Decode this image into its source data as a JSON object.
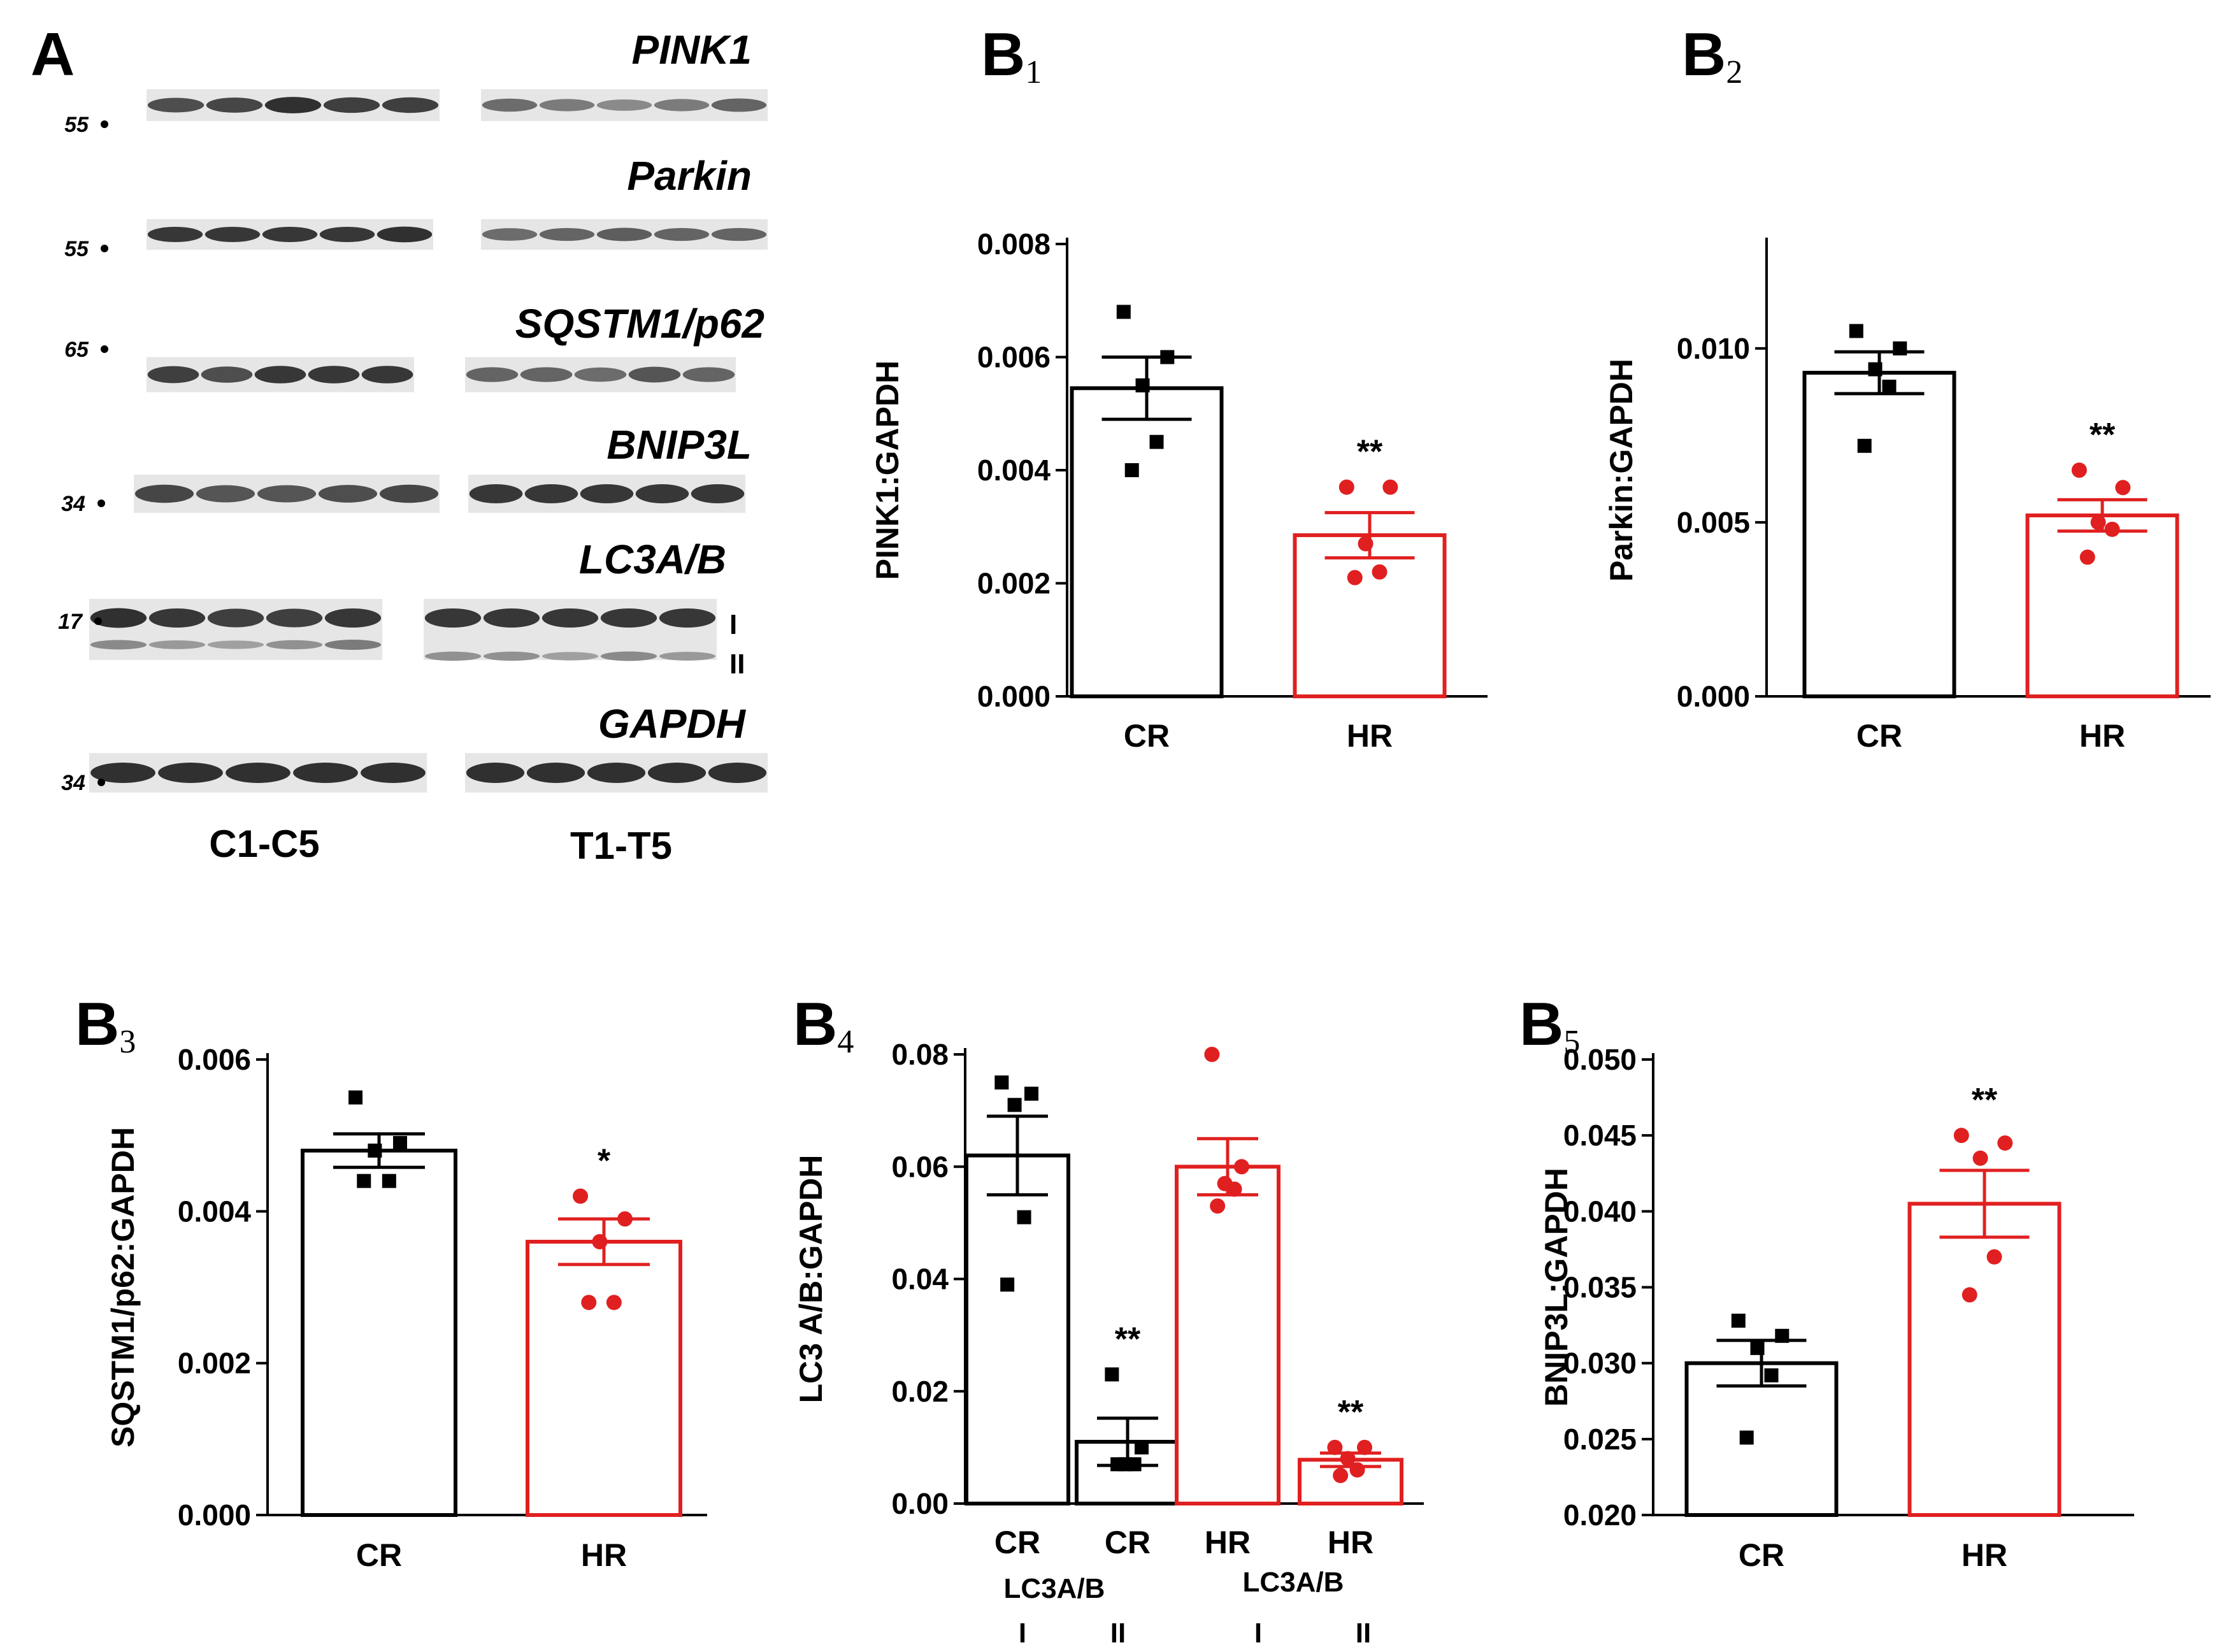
{
  "colors": {
    "control": "#000000",
    "treated": "#e02020",
    "blot_band": "#1a1a1a",
    "blot_bg": "#e6e6e6"
  },
  "blots": {
    "panel_label": "A",
    "group_labels": [
      "C1-C5",
      "T1-T5"
    ],
    "rows": [
      {
        "protein": "PINK1",
        "marker": "55",
        "left_intensity": [
          0.75,
          0.8,
          0.95,
          0.85,
          0.85
        ],
        "right_intensity": [
          0.55,
          0.45,
          0.35,
          0.45,
          0.6
        ]
      },
      {
        "protein": "Parkin",
        "marker": "55",
        "left_intensity": [
          0.9,
          0.9,
          0.9,
          0.9,
          0.95
        ],
        "right_intensity": [
          0.55,
          0.6,
          0.65,
          0.6,
          0.6
        ]
      },
      {
        "protein": "SQSTM1/p62",
        "marker": "65",
        "left_intensity": [
          0.85,
          0.75,
          0.9,
          0.9,
          0.9
        ],
        "right_intensity": [
          0.6,
          0.6,
          0.55,
          0.7,
          0.6
        ]
      },
      {
        "protein": "BNIP3L",
        "marker": "34",
        "left_intensity": [
          0.8,
          0.7,
          0.7,
          0.75,
          0.8
        ],
        "right_intensity": [
          0.9,
          0.9,
          0.9,
          0.9,
          0.9
        ]
      },
      {
        "protein": "LC3A/B",
        "marker": "17",
        "left_intensity": [
          0.95,
          0.9,
          0.85,
          0.85,
          0.9
        ],
        "right_intensity": [
          0.9,
          0.9,
          0.9,
          0.9,
          0.9
        ],
        "band_labels": [
          "I",
          "II"
        ],
        "lower_left_intensity": [
          0.35,
          0.25,
          0.2,
          0.3,
          0.45
        ],
        "lower_right_intensity": [
          0.3,
          0.3,
          0.2,
          0.35,
          0.25
        ]
      },
      {
        "protein": "GAPDH",
        "marker": "34",
        "left_intensity": [
          0.95,
          0.95,
          0.95,
          0.95,
          0.95
        ],
        "right_intensity": [
          0.95,
          0.95,
          0.95,
          0.95,
          0.95
        ]
      }
    ]
  },
  "chart_data": [
    {
      "id": "B1",
      "type": "bar",
      "panel_label": "B",
      "panel_sub": "1",
      "title": "",
      "xlabel": "",
      "ylabel": "PINK1:GAPDH",
      "categories": [
        "CR",
        "HR"
      ],
      "ylim": [
        0,
        0.008
      ],
      "yticks": [
        0,
        0.002,
        0.004,
        0.006,
        0.008
      ],
      "ytick_labels": [
        "0.000",
        "0.002",
        "0.004",
        "0.006",
        "0.008"
      ],
      "series": [
        {
          "name": "CR",
          "mean": 0.00545,
          "sem": 0.00055,
          "points": [
            0.0068,
            0.006,
            0.0055,
            0.0045,
            0.004
          ],
          "color_key": "control",
          "marker": "square",
          "significance": ""
        },
        {
          "name": "HR",
          "mean": 0.00285,
          "sem": 0.0004,
          "points": [
            0.0037,
            0.0037,
            0.0027,
            0.0022,
            0.0021
          ],
          "color_key": "treated",
          "marker": "circle",
          "significance": "**"
        }
      ]
    },
    {
      "id": "B2",
      "type": "bar",
      "panel_label": "B",
      "panel_sub": "2",
      "title": "",
      "xlabel": "",
      "ylabel": "Parkin:GAPDH",
      "categories": [
        "CR",
        "HR"
      ],
      "ylim": [
        0,
        0.013
      ],
      "yticks": [
        0,
        0.005,
        0.01
      ],
      "ytick_labels": [
        "0.000",
        "0.005",
        "0.010"
      ],
      "series": [
        {
          "name": "CR",
          "mean": 0.0093,
          "sem": 0.0006,
          "points": [
            0.0105,
            0.01,
            0.0094,
            0.0089,
            0.0072
          ],
          "color_key": "control",
          "marker": "square",
          "significance": ""
        },
        {
          "name": "HR",
          "mean": 0.0052,
          "sem": 0.00045,
          "points": [
            0.0065,
            0.006,
            0.005,
            0.0048,
            0.004
          ],
          "color_key": "treated",
          "marker": "circle",
          "significance": "**"
        }
      ]
    },
    {
      "id": "B3",
      "type": "bar",
      "panel_label": "B",
      "panel_sub": "3",
      "title": "",
      "xlabel": "",
      "ylabel": "SQSTM1/p62:GAPDH",
      "categories": [
        "CR",
        "HR"
      ],
      "ylim": [
        0,
        0.006
      ],
      "yticks": [
        0,
        0.002,
        0.004,
        0.006
      ],
      "ytick_labels": [
        "0.000",
        "0.002",
        "0.004",
        "0.006"
      ],
      "series": [
        {
          "name": "CR",
          "mean": 0.0048,
          "sem": 0.00022,
          "points": [
            0.0055,
            0.0049,
            0.0048,
            0.0044,
            0.0044
          ],
          "color_key": "control",
          "marker": "square",
          "significance": ""
        },
        {
          "name": "HR",
          "mean": 0.0036,
          "sem": 0.0003,
          "points": [
            0.0042,
            0.0039,
            0.0036,
            0.0028,
            0.0028
          ],
          "color_key": "treated",
          "marker": "circle",
          "significance": "*"
        }
      ]
    },
    {
      "id": "B4",
      "type": "bar",
      "panel_label": "B",
      "panel_sub": "4",
      "title": "",
      "xlabel": "",
      "ylabel": "LC3 A/B:GAPDH",
      "categories": [
        "CR",
        "CR",
        "HR",
        "HR"
      ],
      "group_labels": [
        {
          "label": "LC3A/B",
          "subs": [
            "I",
            "II"
          ]
        },
        {
          "label": "LC3A/B",
          "subs": [
            "I",
            "II"
          ]
        }
      ],
      "ylim": [
        0,
        0.08
      ],
      "yticks": [
        0,
        0.02,
        0.04,
        0.06,
        0.08
      ],
      "ytick_labels": [
        "0.00",
        "0.02",
        "0.04",
        "0.06",
        "0.08"
      ],
      "series": [
        {
          "name": "CR LC3A/B I",
          "mean": 0.062,
          "sem": 0.007,
          "points": [
            0.075,
            0.073,
            0.071,
            0.051,
            0.039
          ],
          "color_key": "control",
          "marker": "square",
          "significance": ""
        },
        {
          "name": "CR LC3A/B II",
          "mean": 0.011,
          "sem": 0.0042,
          "points": [
            0.023,
            0.01,
            0.007,
            0.007,
            0.007
          ],
          "color_key": "control",
          "marker": "square",
          "significance": "**"
        },
        {
          "name": "HR LC3A/B I",
          "mean": 0.06,
          "sem": 0.005,
          "points": [
            0.08,
            0.06,
            0.057,
            0.056,
            0.053
          ],
          "color_key": "treated",
          "marker": "circle",
          "significance": ""
        },
        {
          "name": "HR LC3A/B II",
          "mean": 0.0078,
          "sem": 0.0012,
          "points": [
            0.01,
            0.01,
            0.008,
            0.006,
            0.005
          ],
          "color_key": "treated",
          "marker": "circle",
          "significance": "**"
        }
      ]
    },
    {
      "id": "B5",
      "type": "bar",
      "panel_label": "B",
      "panel_sub": "5",
      "title": "",
      "xlabel": "",
      "ylabel": "BNIP3L:GAPDH",
      "categories": [
        "CR",
        "HR"
      ],
      "ylim": [
        0.02,
        0.05
      ],
      "yticks": [
        0.02,
        0.025,
        0.03,
        0.035,
        0.04,
        0.045,
        0.05
      ],
      "ytick_labels": [
        "0.020",
        "0.025",
        "0.030",
        "0.035",
        "0.040",
        "0.045",
        "0.050"
      ],
      "series": [
        {
          "name": "CR",
          "mean": 0.03,
          "sem": 0.0015,
          "points": [
            0.0328,
            0.0318,
            0.031,
            0.0292,
            0.0251
          ],
          "color_key": "control",
          "marker": "square",
          "significance": ""
        },
        {
          "name": "HR",
          "mean": 0.0405,
          "sem": 0.0022,
          "points": [
            0.045,
            0.0445,
            0.0435,
            0.037,
            0.0345
          ],
          "color_key": "treated",
          "marker": "circle",
          "significance": "**"
        }
      ]
    }
  ]
}
